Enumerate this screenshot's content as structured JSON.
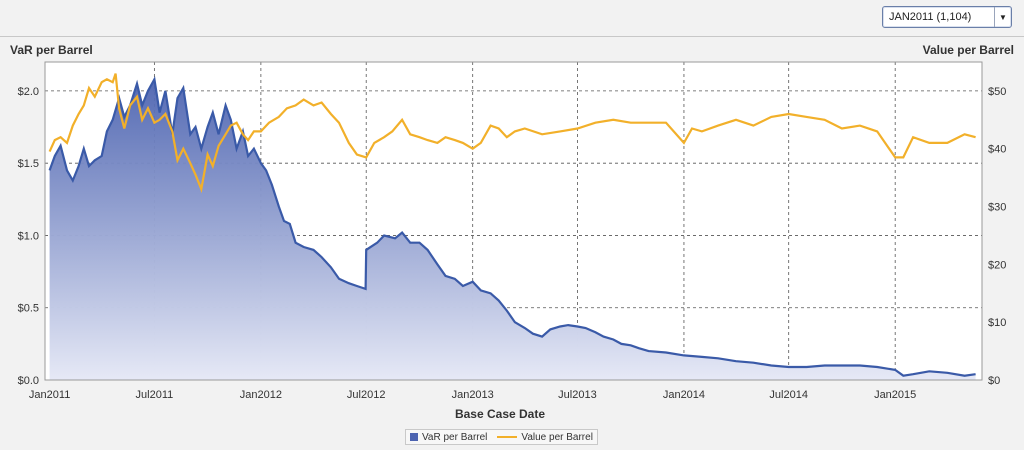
{
  "toolbar": {
    "selector_value": "JAN2011 (1,104)",
    "dropdown_glyph": "▼"
  },
  "colors": {
    "var_line": "#3a5aa8",
    "var_fill_top": "#4c63b0",
    "var_fill_bottom": "#e6e9f6",
    "value_line": "#f2b02a",
    "grid": "#555555",
    "plot_bg": "#ffffff"
  },
  "chart_data": {
    "type": "line",
    "title": "",
    "xlabel": "Base Case Date",
    "ylabel_left": "VaR per Barrel",
    "ylabel_right": "Value per Barrel",
    "x_ticks": [
      "Jan2011",
      "Jul2011",
      "Jan2012",
      "Jul2012",
      "Jan2013",
      "Jul2013",
      "Jan2014",
      "Jul2014",
      "Jan2015"
    ],
    "xlim": [
      "2010-12-24",
      "2015-05-31"
    ],
    "ylim_left": [
      0,
      2.2
    ],
    "y_ticks_left": [
      "$0.0",
      "$0.5",
      "$1.0",
      "$1.5",
      "$2.0"
    ],
    "y_tick_values_left": [
      0,
      0.5,
      1.0,
      1.5,
      2.0
    ],
    "ylim_right": [
      0,
      55
    ],
    "y_ticks_right": [
      "$0",
      "$10",
      "$20",
      "$30",
      "$40",
      "$50"
    ],
    "y_tick_values_right": [
      0,
      10,
      20,
      30,
      40,
      50
    ],
    "grid": true,
    "legend_position": "bottom-center",
    "series": [
      {
        "name": "VaR per Barrel",
        "axis": "left",
        "style": "area",
        "points": [
          [
            "2011-01-01",
            1.45
          ],
          [
            "2011-01-10",
            1.55
          ],
          [
            "2011-01-20",
            1.62
          ],
          [
            "2011-01-31",
            1.45
          ],
          [
            "2011-02-10",
            1.38
          ],
          [
            "2011-02-20",
            1.48
          ],
          [
            "2011-03-01",
            1.6
          ],
          [
            "2011-03-10",
            1.48
          ],
          [
            "2011-03-20",
            1.52
          ],
          [
            "2011-04-01",
            1.55
          ],
          [
            "2011-04-10",
            1.72
          ],
          [
            "2011-04-20",
            1.8
          ],
          [
            "2011-05-01",
            1.95
          ],
          [
            "2011-05-10",
            1.82
          ],
          [
            "2011-05-20",
            1.9
          ],
          [
            "2011-06-01",
            2.05
          ],
          [
            "2011-06-10",
            1.9
          ],
          [
            "2011-06-20",
            2.0
          ],
          [
            "2011-07-01",
            2.08
          ],
          [
            "2011-07-10",
            1.85
          ],
          [
            "2011-07-20",
            2.0
          ],
          [
            "2011-08-01",
            1.7
          ],
          [
            "2011-08-10",
            1.95
          ],
          [
            "2011-08-20",
            2.02
          ],
          [
            "2011-09-01",
            1.7
          ],
          [
            "2011-09-10",
            1.75
          ],
          [
            "2011-09-20",
            1.6
          ],
          [
            "2011-10-01",
            1.75
          ],
          [
            "2011-10-10",
            1.85
          ],
          [
            "2011-10-20",
            1.7
          ],
          [
            "2011-11-01",
            1.9
          ],
          [
            "2011-11-10",
            1.8
          ],
          [
            "2011-11-20",
            1.6
          ],
          [
            "2011-12-01",
            1.72
          ],
          [
            "2011-12-10",
            1.55
          ],
          [
            "2011-12-20",
            1.6
          ],
          [
            "2012-01-01",
            1.5
          ],
          [
            "2012-01-10",
            1.45
          ],
          [
            "2012-01-20",
            1.35
          ],
          [
            "2012-02-01",
            1.2
          ],
          [
            "2012-02-10",
            1.1
          ],
          [
            "2012-02-20",
            1.08
          ],
          [
            "2012-03-01",
            0.95
          ],
          [
            "2012-03-15",
            0.92
          ],
          [
            "2012-04-01",
            0.9
          ],
          [
            "2012-04-15",
            0.85
          ],
          [
            "2012-05-01",
            0.78
          ],
          [
            "2012-05-15",
            0.7
          ],
          [
            "2012-06-01",
            0.67
          ],
          [
            "2012-06-15",
            0.65
          ],
          [
            "2012-06-30",
            0.63
          ],
          [
            "2012-07-01",
            0.9
          ],
          [
            "2012-07-20",
            0.95
          ],
          [
            "2012-08-01",
            1.0
          ],
          [
            "2012-08-20",
            0.98
          ],
          [
            "2012-09-01",
            1.02
          ],
          [
            "2012-09-15",
            0.95
          ],
          [
            "2012-10-01",
            0.95
          ],
          [
            "2012-10-15",
            0.9
          ],
          [
            "2012-11-01",
            0.8
          ],
          [
            "2012-11-15",
            0.72
          ],
          [
            "2012-12-01",
            0.7
          ],
          [
            "2012-12-15",
            0.65
          ],
          [
            "2013-01-01",
            0.68
          ],
          [
            "2013-01-15",
            0.62
          ],
          [
            "2013-02-01",
            0.6
          ],
          [
            "2013-02-15",
            0.55
          ],
          [
            "2013-03-01",
            0.48
          ],
          [
            "2013-03-15",
            0.4
          ],
          [
            "2013-04-01",
            0.36
          ],
          [
            "2013-04-15",
            0.32
          ],
          [
            "2013-05-01",
            0.3
          ],
          [
            "2013-05-15",
            0.35
          ],
          [
            "2013-06-01",
            0.37
          ],
          [
            "2013-06-15",
            0.38
          ],
          [
            "2013-07-01",
            0.37
          ],
          [
            "2013-07-15",
            0.36
          ],
          [
            "2013-08-01",
            0.33
          ],
          [
            "2013-08-15",
            0.3
          ],
          [
            "2013-09-01",
            0.28
          ],
          [
            "2013-09-15",
            0.25
          ],
          [
            "2013-10-01",
            0.24
          ],
          [
            "2013-10-15",
            0.22
          ],
          [
            "2013-11-01",
            0.2
          ],
          [
            "2013-12-01",
            0.19
          ],
          [
            "2014-01-01",
            0.17
          ],
          [
            "2014-02-01",
            0.16
          ],
          [
            "2014-03-01",
            0.15
          ],
          [
            "2014-04-01",
            0.13
          ],
          [
            "2014-05-01",
            0.12
          ],
          [
            "2014-06-01",
            0.1
          ],
          [
            "2014-07-01",
            0.09
          ],
          [
            "2014-08-01",
            0.09
          ],
          [
            "2014-09-01",
            0.1
          ],
          [
            "2014-10-01",
            0.1
          ],
          [
            "2014-11-01",
            0.1
          ],
          [
            "2014-12-01",
            0.09
          ],
          [
            "2015-01-01",
            0.07
          ],
          [
            "2015-01-15",
            0.03
          ],
          [
            "2015-02-01",
            0.04
          ],
          [
            "2015-03-01",
            0.06
          ],
          [
            "2015-04-01",
            0.05
          ],
          [
            "2015-05-01",
            0.03
          ],
          [
            "2015-05-20",
            0.04
          ]
        ]
      },
      {
        "name": "Value per Barrel",
        "axis": "right",
        "style": "line",
        "points": [
          [
            "2011-01-01",
            39.5
          ],
          [
            "2011-01-10",
            41.5
          ],
          [
            "2011-01-20",
            42.0
          ],
          [
            "2011-01-31",
            41.0
          ],
          [
            "2011-02-10",
            44.0
          ],
          [
            "2011-02-20",
            46.0
          ],
          [
            "2011-03-01",
            47.5
          ],
          [
            "2011-03-10",
            50.5
          ],
          [
            "2011-03-20",
            49.0
          ],
          [
            "2011-04-01",
            51.5
          ],
          [
            "2011-04-10",
            52.0
          ],
          [
            "2011-04-20",
            51.5
          ],
          [
            "2011-04-25",
            53.0
          ],
          [
            "2011-05-01",
            47.0
          ],
          [
            "2011-05-10",
            43.5
          ],
          [
            "2011-05-20",
            47.5
          ],
          [
            "2011-06-01",
            49.0
          ],
          [
            "2011-06-10",
            45.0
          ],
          [
            "2011-06-20",
            47.0
          ],
          [
            "2011-07-01",
            44.5
          ],
          [
            "2011-07-10",
            45.0
          ],
          [
            "2011-07-20",
            46.0
          ],
          [
            "2011-08-01",
            43.0
          ],
          [
            "2011-08-10",
            38.0
          ],
          [
            "2011-08-20",
            40.0
          ],
          [
            "2011-09-01",
            37.5
          ],
          [
            "2011-09-10",
            35.5
          ],
          [
            "2011-09-20",
            33.0
          ],
          [
            "2011-10-01",
            39.0
          ],
          [
            "2011-10-10",
            37.0
          ],
          [
            "2011-10-20",
            40.5
          ],
          [
            "2011-11-01",
            42.5
          ],
          [
            "2011-11-10",
            44.0
          ],
          [
            "2011-11-20",
            44.5
          ],
          [
            "2011-12-01",
            42.5
          ],
          [
            "2011-12-10",
            41.5
          ],
          [
            "2011-12-20",
            43.0
          ],
          [
            "2012-01-01",
            43.0
          ],
          [
            "2012-01-15",
            44.5
          ],
          [
            "2012-02-01",
            45.5
          ],
          [
            "2012-02-15",
            47.0
          ],
          [
            "2012-03-01",
            47.5
          ],
          [
            "2012-03-15",
            48.5
          ],
          [
            "2012-04-01",
            47.5
          ],
          [
            "2012-04-15",
            48.0
          ],
          [
            "2012-05-01",
            46.0
          ],
          [
            "2012-05-15",
            44.5
          ],
          [
            "2012-06-01",
            41.0
          ],
          [
            "2012-06-15",
            39.0
          ],
          [
            "2012-07-01",
            38.5
          ],
          [
            "2012-07-15",
            41.0
          ],
          [
            "2012-08-01",
            42.0
          ],
          [
            "2012-08-15",
            43.0
          ],
          [
            "2012-09-01",
            45.0
          ],
          [
            "2012-09-15",
            42.5
          ],
          [
            "2012-10-01",
            42.0
          ],
          [
            "2012-10-15",
            41.5
          ],
          [
            "2012-11-01",
            41.0
          ],
          [
            "2012-11-15",
            42.0
          ],
          [
            "2012-12-01",
            41.5
          ],
          [
            "2012-12-15",
            41.0
          ],
          [
            "2013-01-01",
            40.0
          ],
          [
            "2013-01-15",
            41.0
          ],
          [
            "2013-02-01",
            44.0
          ],
          [
            "2013-02-15",
            43.5
          ],
          [
            "2013-03-01",
            42.0
          ],
          [
            "2013-03-15",
            43.0
          ],
          [
            "2013-04-01",
            43.5
          ],
          [
            "2013-05-01",
            42.5
          ],
          [
            "2013-06-01",
            43.0
          ],
          [
            "2013-07-01",
            43.5
          ],
          [
            "2013-08-01",
            44.5
          ],
          [
            "2013-09-01",
            45.0
          ],
          [
            "2013-10-01",
            44.5
          ],
          [
            "2013-11-01",
            44.5
          ],
          [
            "2013-12-01",
            44.5
          ],
          [
            "2014-01-01",
            41.0
          ],
          [
            "2014-01-15",
            43.5
          ],
          [
            "2014-02-01",
            43.0
          ],
          [
            "2014-03-01",
            44.0
          ],
          [
            "2014-04-01",
            45.0
          ],
          [
            "2014-05-01",
            44.0
          ],
          [
            "2014-06-01",
            45.5
          ],
          [
            "2014-07-01",
            46.0
          ],
          [
            "2014-08-01",
            45.5
          ],
          [
            "2014-09-01",
            45.0
          ],
          [
            "2014-10-01",
            43.5
          ],
          [
            "2014-11-01",
            44.0
          ],
          [
            "2014-12-01",
            43.0
          ],
          [
            "2015-01-01",
            38.5
          ],
          [
            "2015-01-15",
            38.5
          ],
          [
            "2015-02-01",
            42.0
          ],
          [
            "2015-03-01",
            41.0
          ],
          [
            "2015-04-01",
            41.0
          ],
          [
            "2015-05-01",
            42.5
          ],
          [
            "2015-05-20",
            42.0
          ]
        ]
      }
    ]
  }
}
